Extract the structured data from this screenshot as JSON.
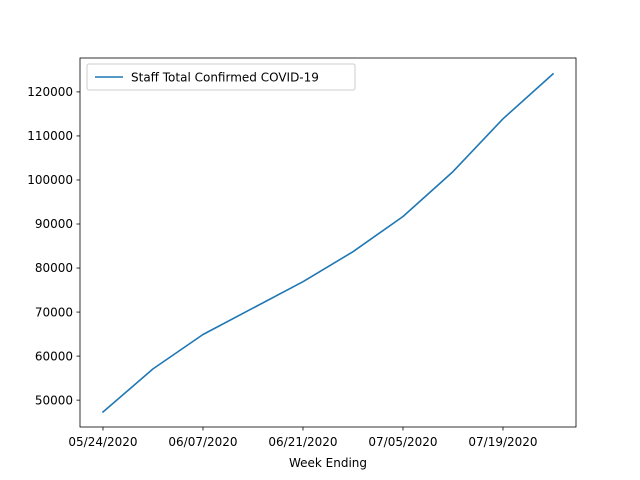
{
  "chart_data": {
    "type": "line",
    "title": "",
    "xlabel": "Week Ending",
    "ylabel": "",
    "x": [
      "05/24/2020",
      "05/31/2020",
      "06/07/2020",
      "06/14/2020",
      "06/21/2020",
      "06/28/2020",
      "07/05/2020",
      "07/12/2020",
      "07/19/2020",
      "07/26/2020"
    ],
    "x_tick_labels": [
      "05/24/2020",
      "06/07/2020",
      "06/21/2020",
      "07/05/2020",
      "07/19/2020"
    ],
    "y_ticks": [
      50000,
      60000,
      70000,
      80000,
      90000,
      100000,
      110000,
      120000
    ],
    "y_tick_labels": [
      "50000",
      "60000",
      "70000",
      "80000",
      "90000",
      "100000",
      "110000",
      "120000"
    ],
    "ylim": [
      43900,
      127700
    ],
    "grid": false,
    "legend_position": "upper-left",
    "series": [
      {
        "name": "Staff Total Confirmed COVID-19",
        "color": "#1f77b4",
        "values": [
          47300,
          57100,
          64900,
          70900,
          76900,
          83700,
          91700,
          101900,
          113900,
          124100
        ]
      }
    ]
  }
}
